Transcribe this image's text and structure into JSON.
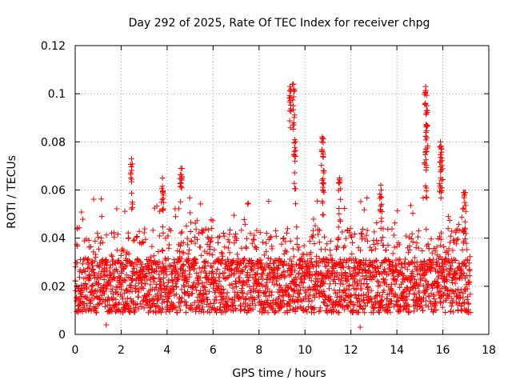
{
  "chart_data": {
    "type": "scatter",
    "title": "Day 292 of 2025, Rate Of TEC Index for receiver chpg",
    "xlabel": "GPS time / hours",
    "ylabel": "ROTI / TECUs",
    "xlim": [
      0,
      18
    ],
    "ylim": [
      0,
      0.12
    ],
    "x_ticks": [
      0,
      2,
      4,
      6,
      8,
      10,
      12,
      14,
      16,
      18
    ],
    "y_ticks": [
      0,
      0.02,
      0.04,
      0.06,
      0.08,
      0.1,
      0.12
    ],
    "x_tick_labels": [
      "0",
      "2",
      "4",
      "6",
      "8",
      "10",
      "12",
      "14",
      "16",
      "18"
    ],
    "y_tick_labels": [
      "0",
      "0.02",
      "0.04",
      "0.06",
      "0.08",
      "0.1",
      "0.12"
    ],
    "grid": true,
    "marker": "+",
    "color": "#ff0000",
    "data_extent_hours": [
      0,
      17.2
    ],
    "series": [
      {
        "name": "ROTI",
        "baseline_band": [
          0.005,
          0.035
        ],
        "notable_points": [
          {
            "x": 2.45,
            "y": 0.073
          },
          {
            "x": 3.8,
            "y": 0.065
          },
          {
            "x": 4.6,
            "y": 0.069
          },
          {
            "x": 9.35,
            "y": 0.103
          },
          {
            "x": 9.5,
            "y": 0.104
          },
          {
            "x": 9.55,
            "y": 0.081
          },
          {
            "x": 10.75,
            "y": 0.082
          },
          {
            "x": 10.8,
            "y": 0.068
          },
          {
            "x": 11.5,
            "y": 0.065
          },
          {
            "x": 13.3,
            "y": 0.062
          },
          {
            "x": 15.25,
            "y": 0.103
          },
          {
            "x": 15.3,
            "y": 0.095
          },
          {
            "x": 15.25,
            "y": 0.077
          },
          {
            "x": 15.9,
            "y": 0.08
          },
          {
            "x": 15.95,
            "y": 0.077
          },
          {
            "x": 16.95,
            "y": 0.059
          },
          {
            "x": 12.4,
            "y": 0.003
          },
          {
            "x": 1.35,
            "y": 0.004
          }
        ]
      }
    ]
  }
}
